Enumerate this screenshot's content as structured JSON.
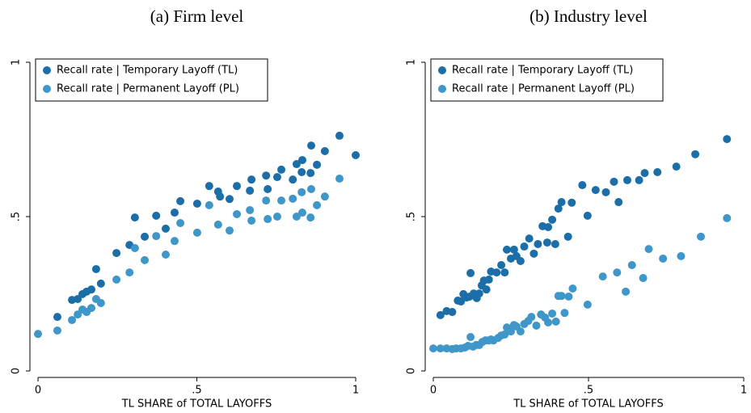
{
  "chart_data": [
    {
      "type": "scatter",
      "title": "(a) Firm level",
      "xlabel": "TL SHARE of TOTAL LAYOFFS",
      "xlim": [
        0,
        1
      ],
      "ylim": [
        0,
        1
      ],
      "xticks": [
        0,
        {
          "value": 0.5,
          "label": ".5"
        },
        1
      ],
      "yticks": [
        0,
        {
          "value": 0.5,
          "label": ".5"
        },
        1
      ],
      "legend": "upper left",
      "series": [
        {
          "name": "Recall rate | Temporary Layoff (TL)",
          "color": "#1b6ea8",
          "x": [
            0.061,
            0.107,
            0.125,
            0.14,
            0.153,
            0.168,
            0.183,
            0.198,
            0.247,
            0.288,
            0.305,
            0.336,
            0.372,
            0.402,
            0.43,
            0.448,
            0.501,
            0.539,
            0.567,
            0.573,
            0.603,
            0.626,
            0.667,
            0.672,
            0.718,
            0.723,
            0.753,
            0.766,
            0.802,
            0.814,
            0.83,
            0.832,
            0.858,
            0.86,
            0.878,
            0.903,
            0.949,
            1.0
          ],
          "values": [
            0.175,
            0.23,
            0.233,
            0.249,
            0.257,
            0.264,
            0.33,
            0.283,
            0.382,
            0.408,
            0.497,
            0.435,
            0.503,
            0.461,
            0.513,
            0.55,
            0.542,
            0.599,
            0.581,
            0.565,
            0.557,
            0.599,
            0.584,
            0.62,
            0.633,
            0.589,
            0.628,
            0.652,
            0.62,
            0.67,
            0.644,
            0.683,
            0.641,
            0.73,
            0.668,
            0.712,
            0.762,
            0.699
          ]
        },
        {
          "name": "Recall rate | Permanent Layoff (PL)",
          "color": "#3f97c9",
          "x": [
            0,
            0.061,
            0.107,
            0.125,
            0.14,
            0.153,
            0.168,
            0.183,
            0.198,
            0.247,
            0.288,
            0.305,
            0.336,
            0.372,
            0.402,
            0.43,
            0.448,
            0.501,
            0.539,
            0.567,
            0.603,
            0.626,
            0.667,
            0.672,
            0.718,
            0.723,
            0.753,
            0.766,
            0.802,
            0.814,
            0.83,
            0.832,
            0.858,
            0.86,
            0.878,
            0.903,
            0.949
          ],
          "values": [
            0.12,
            0.131,
            0.165,
            0.183,
            0.199,
            0.191,
            0.204,
            0.233,
            0.22,
            0.296,
            0.319,
            0.398,
            0.359,
            0.437,
            0.377,
            0.421,
            0.479,
            0.448,
            0.537,
            0.474,
            0.455,
            0.508,
            0.521,
            0.487,
            0.552,
            0.492,
            0.5,
            0.552,
            0.558,
            0.5,
            0.579,
            0.513,
            0.497,
            0.589,
            0.537,
            0.565,
            0.623
          ]
        }
      ]
    },
    {
      "type": "scatter",
      "title": "(b) Industry level",
      "xlabel": "TL SHARE of TOTAL LAYOFFS",
      "xlim": [
        0,
        1
      ],
      "ylim": [
        0,
        1
      ],
      "xticks": [
        0,
        {
          "value": 0.5,
          "label": ".5"
        },
        1
      ],
      "yticks": [
        0,
        {
          "value": 0.5,
          "label": ".5"
        },
        1
      ],
      "legend": "upper left",
      "series": [
        {
          "name": "Recall rate | Temporary Layoff (TL)",
          "color": "#1b6ea8",
          "x": [
            0.023,
            0.043,
            0.061,
            0.079,
            0.089,
            0.097,
            0.107,
            0.117,
            0.12,
            0.13,
            0.14,
            0.148,
            0.156,
            0.163,
            0.171,
            0.179,
            0.186,
            0.204,
            0.219,
            0.23,
            0.237,
            0.25,
            0.26,
            0.268,
            0.281,
            0.293,
            0.309,
            0.324,
            0.337,
            0.352,
            0.367,
            0.37,
            0.383,
            0.393,
            0.403,
            0.413,
            0.434,
            0.446,
            0.48,
            0.497,
            0.523,
            0.556,
            0.582,
            0.597,
            0.625,
            0.663,
            0.681,
            0.722,
            0.783,
            0.844,
            0.946
          ],
          "values": [
            0.181,
            0.194,
            0.191,
            0.228,
            0.225,
            0.249,
            0.238,
            0.241,
            0.317,
            0.251,
            0.236,
            0.251,
            0.277,
            0.293,
            0.264,
            0.296,
            0.322,
            0.319,
            0.343,
            0.319,
            0.393,
            0.364,
            0.393,
            0.372,
            0.356,
            0.403,
            0.429,
            0.38,
            0.411,
            0.469,
            0.416,
            0.466,
            0.49,
            0.411,
            0.526,
            0.547,
            0.435,
            0.545,
            0.602,
            0.503,
            0.586,
            0.579,
            0.613,
            0.547,
            0.618,
            0.618,
            0.641,
            0.644,
            0.662,
            0.702,
            0.751
          ]
        },
        {
          "name": "Recall rate | Permanent Layoff (PL)",
          "color": "#3f97c9",
          "x": [
            0,
            0.023,
            0.043,
            0.061,
            0.074,
            0.089,
            0.102,
            0.112,
            0.12,
            0.128,
            0.138,
            0.148,
            0.158,
            0.168,
            0.179,
            0.186,
            0.194,
            0.209,
            0.219,
            0.23,
            0.237,
            0.25,
            0.26,
            0.268,
            0.281,
            0.293,
            0.306,
            0.316,
            0.332,
            0.347,
            0.36,
            0.37,
            0.383,
            0.395,
            0.403,
            0.413,
            0.423,
            0.436,
            0.449,
            0.497,
            0.546,
            0.592,
            0.62,
            0.64,
            0.676,
            0.694,
            0.74,
            0.798,
            0.862,
            0.946
          ],
          "values": [
            0.073,
            0.073,
            0.073,
            0.071,
            0.073,
            0.073,
            0.076,
            0.081,
            0.11,
            0.079,
            0.084,
            0.084,
            0.094,
            0.099,
            0.099,
            0.102,
            0.099,
            0.107,
            0.115,
            0.118,
            0.141,
            0.128,
            0.149,
            0.144,
            0.128,
            0.152,
            0.162,
            0.175,
            0.147,
            0.183,
            0.173,
            0.157,
            0.186,
            0.16,
            0.243,
            0.243,
            0.188,
            0.241,
            0.267,
            0.215,
            0.306,
            0.319,
            0.257,
            0.343,
            0.301,
            0.395,
            0.364,
            0.372,
            0.435,
            0.495
          ]
        }
      ]
    }
  ]
}
